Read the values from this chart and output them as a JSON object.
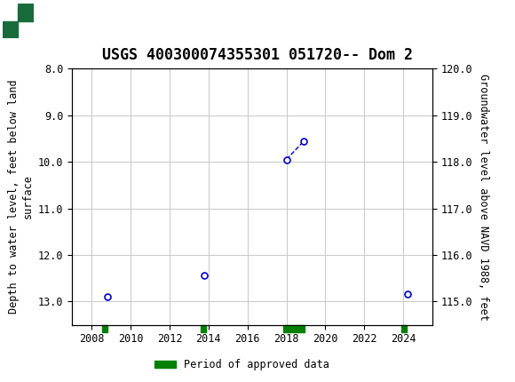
{
  "title": "USGS 400300074355301 051720-- Dom 2",
  "ylabel_left": "Depth to water level, feet below land\nsurface",
  "ylabel_right": "Groundwater level above NAVD 1988, feet",
  "xlim": [
    2007,
    2025.5
  ],
  "ylim_left": [
    8.0,
    13.5
  ],
  "ylim_right": [
    114.5,
    120.0
  ],
  "yticks_left": [
    8.0,
    9.0,
    10.0,
    11.0,
    12.0,
    13.0
  ],
  "yticks_right": [
    115.0,
    116.0,
    117.0,
    118.0,
    119.0,
    120.0
  ],
  "xticks": [
    2008,
    2010,
    2012,
    2014,
    2016,
    2018,
    2020,
    2022,
    2024
  ],
  "data_x": [
    2008.8,
    2013.8,
    2018.0,
    2018.9,
    2024.2
  ],
  "data_y": [
    12.9,
    12.45,
    9.95,
    9.55,
    12.85
  ],
  "connected_indices": [
    [
      2,
      3
    ]
  ],
  "point_color": "#0000CC",
  "line_color": "#0000CC",
  "grid_color": "#CCCCCC",
  "background_color": "#FFFFFF",
  "header_color": "#1A6B3C",
  "approved_bars": [
    {
      "x_start": 2008.55,
      "x_end": 2008.8
    },
    {
      "x_start": 2013.6,
      "x_end": 2013.85
    },
    {
      "x_start": 2017.85,
      "x_end": 2018.95
    },
    {
      "x_start": 2023.9,
      "x_end": 2024.15
    }
  ],
  "approved_color": "#008000",
  "legend_label": "Period of approved data",
  "font_family": "monospace",
  "title_fontsize": 12,
  "axis_label_fontsize": 8.5,
  "tick_fontsize": 8.5
}
